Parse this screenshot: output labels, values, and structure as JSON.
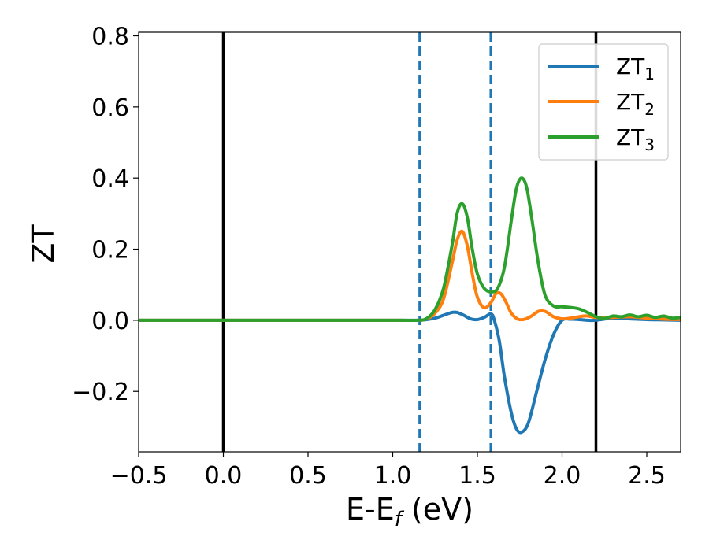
{
  "chart_data": {
    "type": "line",
    "title": "",
    "xlabel": "E-E",
    "xlabel_sub": "f",
    "xlabel_suffix": " (eV)",
    "ylabel": "ZT",
    "xlim": [
      -0.5,
      2.7
    ],
    "ylim": [
      -0.37,
      0.81
    ],
    "xticks": [
      -0.5,
      0.0,
      0.5,
      1.0,
      1.5,
      2.0,
      2.5
    ],
    "xtick_labels": [
      "−0.5",
      "0.0",
      "0.5",
      "1.0",
      "1.5",
      "2.0",
      "2.5"
    ],
    "yticks": [
      -0.2,
      0.0,
      0.2,
      0.4,
      0.6,
      0.8
    ],
    "ytick_labels": [
      "−0.2",
      "0.0",
      "0.2",
      "0.4",
      "0.6",
      "0.8"
    ],
    "grid": false,
    "legend_position": "top-right",
    "vlines": [
      {
        "x": 0.0,
        "color": "#000000",
        "style": "solid"
      },
      {
        "x": 2.2,
        "color": "#000000",
        "style": "solid"
      },
      {
        "x": 1.16,
        "color": "#1f77b4",
        "style": "dashed"
      },
      {
        "x": 1.58,
        "color": "#1f77b4",
        "style": "dashed"
      }
    ],
    "series": [
      {
        "name": "ZT",
        "sub": "1",
        "color": "#1f77b4",
        "x": [
          -0.5,
          0.0,
          0.5,
          1.0,
          1.15,
          1.2,
          1.25,
          1.3,
          1.35,
          1.38,
          1.42,
          1.46,
          1.5,
          1.54,
          1.58,
          1.6,
          1.63,
          1.66,
          1.7,
          1.73,
          1.76,
          1.8,
          1.85,
          1.9,
          1.95,
          2.0,
          2.05,
          2.1,
          2.15,
          2.2,
          2.3,
          2.4,
          2.5,
          2.6,
          2.7
        ],
        "y": [
          0,
          0,
          0,
          0,
          0,
          0.002,
          0.006,
          0.014,
          0.022,
          0.022,
          0.014,
          0.004,
          0.002,
          0.008,
          0.018,
          0.0,
          -0.06,
          -0.16,
          -0.26,
          -0.305,
          -0.315,
          -0.29,
          -0.2,
          -0.11,
          -0.04,
          0,
          0.003,
          0.002,
          0.0,
          0.0,
          0.006,
          0.004,
          0.002,
          0.001,
          0.0
        ]
      },
      {
        "name": "ZT",
        "sub": "2",
        "color": "#ff7f0e",
        "x": [
          -0.5,
          0.0,
          0.5,
          1.0,
          1.15,
          1.2,
          1.25,
          1.3,
          1.35,
          1.38,
          1.41,
          1.44,
          1.47,
          1.5,
          1.54,
          1.58,
          1.61,
          1.64,
          1.67,
          1.7,
          1.74,
          1.78,
          1.82,
          1.86,
          1.9,
          1.95,
          2.0,
          2.05,
          2.1,
          2.15,
          2.2,
          2.3,
          2.4,
          2.5,
          2.6,
          2.7
        ],
        "y": [
          0,
          0,
          0,
          0,
          0,
          0.004,
          0.02,
          0.06,
          0.16,
          0.225,
          0.25,
          0.21,
          0.13,
          0.065,
          0.035,
          0.05,
          0.075,
          0.074,
          0.05,
          0.02,
          0.003,
          0.003,
          0.012,
          0.025,
          0.025,
          0.01,
          0.004,
          0.006,
          0.01,
          0.012,
          0.008,
          0.008,
          0.01,
          0.006,
          0.003,
          0.002
        ]
      },
      {
        "name": "ZT",
        "sub": "3",
        "color": "#2ca02c",
        "x": [
          -0.5,
          0.0,
          0.5,
          1.0,
          1.15,
          1.2,
          1.25,
          1.3,
          1.35,
          1.38,
          1.41,
          1.44,
          1.47,
          1.5,
          1.54,
          1.58,
          1.62,
          1.66,
          1.7,
          1.73,
          1.76,
          1.79,
          1.82,
          1.86,
          1.9,
          1.95,
          2.0,
          2.05,
          2.1,
          2.15,
          2.2,
          2.25,
          2.3,
          2.35,
          2.4,
          2.45,
          2.5,
          2.55,
          2.6,
          2.65,
          2.7
        ],
        "y": [
          0,
          0,
          0,
          0,
          0,
          0.005,
          0.03,
          0.09,
          0.21,
          0.3,
          0.328,
          0.29,
          0.2,
          0.13,
          0.09,
          0.08,
          0.09,
          0.15,
          0.28,
          0.37,
          0.4,
          0.375,
          0.29,
          0.16,
          0.07,
          0.04,
          0.038,
          0.036,
          0.032,
          0.022,
          0.01,
          0.005,
          0.012,
          0.01,
          0.015,
          0.01,
          0.014,
          0.008,
          0.012,
          0.006,
          0.008
        ]
      }
    ]
  }
}
